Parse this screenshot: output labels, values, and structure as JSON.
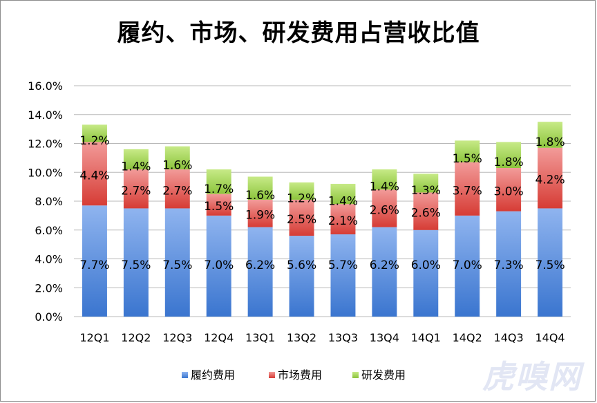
{
  "title": "履约、市场、研发费用占营收比值",
  "watermark": "虎嗅网",
  "colors": {
    "series_0_top": "#8fb4ef",
    "series_0_bottom": "#3a75cf",
    "series_1_top": "#f29b99",
    "series_1_bottom": "#d63c35",
    "series_2_top": "#c7ea87",
    "series_2_bottom": "#8cc43c",
    "grid": "#b8b8b8"
  },
  "chart_data": {
    "type": "bar",
    "stacked": true,
    "title": "履约、市场、研发费用占营收比值",
    "categories": [
      "12Q1",
      "12Q2",
      "12Q3",
      "12Q4",
      "13Q1",
      "13Q2",
      "13Q3",
      "13Q4",
      "14Q1",
      "14Q2",
      "14Q3",
      "14Q4"
    ],
    "series": [
      {
        "name": "履约费用",
        "values": [
          7.7,
          7.5,
          7.5,
          7.0,
          6.2,
          5.6,
          5.7,
          6.2,
          6.0,
          7.0,
          7.3,
          7.5
        ]
      },
      {
        "name": "市场费用",
        "values": [
          4.4,
          2.7,
          2.7,
          1.5,
          1.9,
          2.5,
          2.1,
          2.6,
          2.6,
          3.7,
          3.0,
          4.2
        ]
      },
      {
        "name": "研发费用",
        "values": [
          1.2,
          1.4,
          1.6,
          1.7,
          1.6,
          1.2,
          1.4,
          1.4,
          1.3,
          1.5,
          1.8,
          1.8
        ]
      }
    ],
    "ylim": [
      0,
      16
    ],
    "yticks": [
      "0.0%",
      "2.0%",
      "4.0%",
      "6.0%",
      "8.0%",
      "10.0%",
      "12.0%",
      "14.0%",
      "16.0%"
    ],
    "grid": true,
    "legend_position": "bottom"
  }
}
